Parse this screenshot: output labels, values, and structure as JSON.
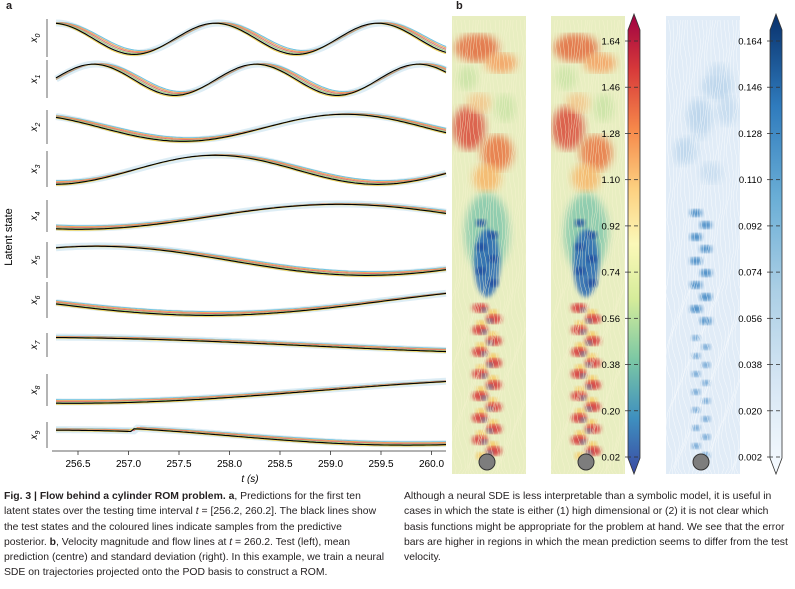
{
  "panel_a": {
    "letter": "a",
    "y_axis_label": "Latent state",
    "x_axis_label": "t (s)",
    "state_labels": [
      "x0",
      "x1",
      "x2",
      "x3",
      "x4",
      "x5",
      "x6",
      "x7",
      "x8",
      "x9"
    ],
    "x_ticks": [
      "256.5",
      "257.0",
      "257.5",
      "258.0",
      "258.5",
      "259.0",
      "259.5",
      "260.0"
    ],
    "colors": {
      "test": "#000000",
      "samples": [
        "#6ec3e0",
        "#f2a65a",
        "#e57373",
        "#9fd07a",
        "#b5a2d6",
        "#f0d35a"
      ]
    }
  },
  "panel_b": {
    "letter": "b",
    "colorbar_mean_ticks": [
      "1.64",
      "1.46",
      "1.28",
      "1.10",
      "0.92",
      "0.74",
      "0.56",
      "0.38",
      "0.20",
      "0.02"
    ],
    "colorbar_std_ticks": [
      "0.164",
      "0.146",
      "0.128",
      "0.110",
      "0.092",
      "0.074",
      "0.056",
      "0.038",
      "0.020",
      "0.002"
    ],
    "colormap_mean": [
      "#3b4aa3",
      "#3e8fbf",
      "#7cc8a4",
      "#d5ec9a",
      "#fbf8b8",
      "#fdd080",
      "#f6884a",
      "#d7393a",
      "#9e0142"
    ],
    "colormap_std": [
      "#f7fbff",
      "#d6e6f4",
      "#abcfe5",
      "#6aaed6",
      "#3888c1",
      "#1460a8",
      "#08306b"
    ]
  },
  "caption": {
    "fig_label": "Fig. 3 | Flow behind a cylinder ROM problem.",
    "panel_a_letter": "a",
    "panel_a_text_1": ", Predictions for the first ten latent states over the testing time interval ",
    "t_symbol": "t",
    "panel_a_text_2": " = [256.2, 260.2]. The black lines show the test states and the coloured lines indicate samples from the predictive posterior. ",
    "panel_b_letter": "b",
    "panel_b_text_1": ", Velocity magnitude and flow lines at ",
    "panel_b_text_2": " = 260.2. Test (left), mean prediction (centre) and standard deviation (right). In this example, we train a neural SDE on trajectories projected onto the POD basis to construct a ROM.",
    "right_text": "Although a neural SDE is less interpretable than a symbolic model, it is useful in cases in which the state is either (1) high dimensional or (2) it is not clear which basis functions might be appropriate for the problem at hand. We see that the error bars are higher in regions in which the mean prediction seems to differ from the test velocity."
  }
}
